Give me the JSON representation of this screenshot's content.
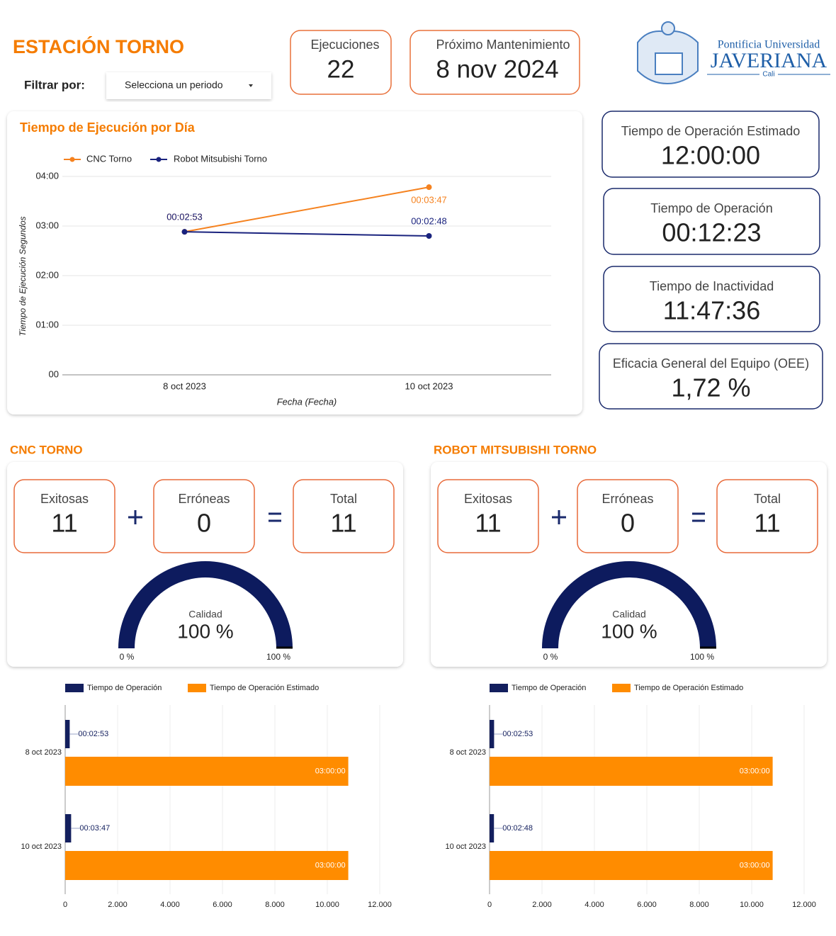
{
  "header": {
    "title": "ESTACIÓN TORNO",
    "filter_label": "Filtrar por:",
    "filter_placeholder": "Selecciona un periodo"
  },
  "top_cards": [
    {
      "label": "Ejecuciones",
      "value": 22
    },
    {
      "label": "Próximo Mantenimiento",
      "value": "8 nov 2024"
    }
  ],
  "logo": {
    "line1": "Pontificia Universidad",
    "line2": "JAVERIANA",
    "line3": "Cali"
  },
  "side_cards": [
    {
      "label": "Tiempo de Operación Estimado",
      "value": "12:00:00"
    },
    {
      "label": "Tiempo de Operación",
      "value": "00:12:23"
    },
    {
      "label": "Tiempo de Inactividad",
      "value": "11:47:36"
    },
    {
      "label": "Eficacia General del Equipo (OEE)",
      "value": "1,72 %"
    }
  ],
  "sections": [
    {
      "title": "CNC TORNO",
      "counters": [
        {
          "label": "Exitosas",
          "value": 11
        },
        {
          "label": "Erróneas",
          "value": 0
        },
        {
          "label": "Total",
          "value": 11
        }
      ]
    },
    {
      "title": "ROBOT MITSUBISHI TORNO",
      "counters": [
        {
          "label": "Exitosas",
          "value": 11
        },
        {
          "label": "Erróneas",
          "value": 0
        },
        {
          "label": "Total",
          "value": 11
        }
      ]
    }
  ],
  "chart_data": [
    {
      "type": "line",
      "title": "Tiempo de Ejecución por Día",
      "x_label": "Fecha (Fecha)",
      "y_label": "Tiempo de Ejecución Segundos",
      "categories": [
        "8 oct 2023",
        "10 oct 2023"
      ],
      "series": [
        {
          "name": "CNC Torno",
          "color": "#f5821f",
          "values": [
            173,
            227
          ],
          "value_labels": [
            "00:02:53",
            "00:03:47"
          ]
        },
        {
          "name": "Robot Mitsubishi Torno",
          "color": "#1a237e",
          "values": [
            173,
            168
          ],
          "value_labels": [
            "00:02:53",
            "00:02:48"
          ]
        }
      ],
      "ylim": [
        0,
        240
      ],
      "yticks": [
        {
          "value": 0,
          "label": "00"
        },
        {
          "value": 60,
          "label": "01:00"
        },
        {
          "value": 120,
          "label": "02:00"
        },
        {
          "value": 180,
          "label": "03:00"
        },
        {
          "value": 240,
          "label": "04:00"
        }
      ],
      "grid": true,
      "legend": "top"
    },
    {
      "type": "gauge",
      "title": "Calidad",
      "value": 100,
      "value_label": "100 %",
      "range": [
        0,
        100
      ],
      "ticks": [
        {
          "value": 0,
          "label": "0 %"
        },
        {
          "value": 100,
          "label": "100 %"
        }
      ],
      "color": "#0d1b5e"
    },
    {
      "type": "bar",
      "orientation": "horizontal",
      "categories": [
        "8 oct 2023",
        "10 oct 2023"
      ],
      "series": [
        {
          "name": "Tiempo de Operación",
          "color": "#131f5e",
          "values": [
            173,
            227
          ],
          "value_labels": [
            "00:02:53",
            "00:03:47"
          ]
        },
        {
          "name": "Tiempo de Operación Estimado",
          "color": "#ff8c00",
          "values": [
            10800,
            10800
          ],
          "value_labels": [
            "03:00:00",
            "03:00:00"
          ]
        }
      ],
      "xlim": [
        0,
        12000
      ],
      "xticks": [
        0,
        {
          "value": 2000,
          "label": "2.000"
        },
        {
          "value": 4000,
          "label": "4.000"
        },
        {
          "value": 6000,
          "label": "6.000"
        },
        {
          "value": 8000,
          "label": "8.000"
        },
        {
          "value": 10000,
          "label": "10.000"
        },
        {
          "value": 12000,
          "label": "12.000"
        }
      ],
      "grid": true,
      "legend": "top"
    },
    {
      "type": "gauge",
      "title": "Calidad",
      "value": 100,
      "value_label": "100 %",
      "range": [
        0,
        100
      ],
      "ticks": [
        {
          "value": 0,
          "label": "0 %"
        },
        {
          "value": 100,
          "label": "100 %"
        }
      ],
      "color": "#0d1b5e"
    },
    {
      "type": "bar",
      "orientation": "horizontal",
      "categories": [
        "8 oct 2023",
        "10 oct 2023"
      ],
      "series": [
        {
          "name": "Tiempo de Operación",
          "color": "#131f5e",
          "values": [
            173,
            168
          ],
          "value_labels": [
            "00:02:53",
            "00:02:48"
          ]
        },
        {
          "name": "Tiempo de Operación Estimado",
          "color": "#ff8c00",
          "values": [
            10800,
            10800
          ],
          "value_labels": [
            "03:00:00",
            "03:00:00"
          ]
        }
      ],
      "xlim": [
        0,
        12000
      ],
      "xticks": [
        0,
        {
          "value": 2000,
          "label": "2.000"
        },
        {
          "value": 4000,
          "label": "4.000"
        },
        {
          "value": 6000,
          "label": "6.000"
        },
        {
          "value": 8000,
          "label": "8.000"
        },
        {
          "value": 10000,
          "label": "10.000"
        },
        {
          "value": 12000,
          "label": "12.000"
        }
      ],
      "grid": true,
      "legend": "top"
    }
  ]
}
